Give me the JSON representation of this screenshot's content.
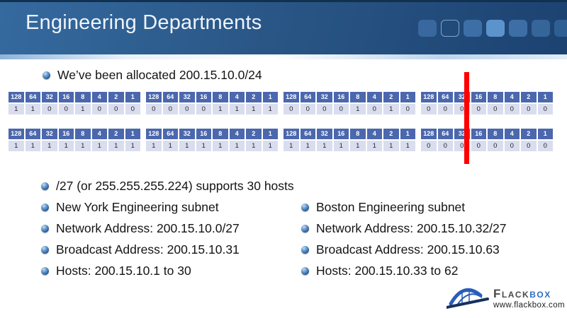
{
  "title": "Engineering Departments",
  "bullets": {
    "allocated": "We’ve been allocated 200.15.10.0/24",
    "supports": "/27 (or 255.255.255.224) supports 30 hosts"
  },
  "binary_tables": {
    "bit_headers": [
      "128",
      "64",
      "32",
      "16",
      "8",
      "4",
      "2",
      "1"
    ],
    "rows": [
      {
        "octets": [
          [
            "1",
            "1",
            "0",
            "0",
            "1",
            "0",
            "0",
            "0"
          ],
          [
            "0",
            "0",
            "0",
            "0",
            "1",
            "1",
            "1",
            "1"
          ],
          [
            "0",
            "0",
            "0",
            "0",
            "1",
            "0",
            "1",
            "0"
          ],
          [
            "0",
            "0",
            "0",
            "0",
            "0",
            "0",
            "0",
            "0"
          ]
        ]
      },
      {
        "octets": [
          [
            "1",
            "1",
            "1",
            "1",
            "1",
            "1",
            "1",
            "1"
          ],
          [
            "1",
            "1",
            "1",
            "1",
            "1",
            "1",
            "1",
            "1"
          ],
          [
            "1",
            "1",
            "1",
            "1",
            "1",
            "1",
            "1",
            "1"
          ],
          [
            "0",
            "0",
            "0",
            "0",
            "0",
            "0",
            "0",
            "0"
          ]
        ]
      }
    ]
  },
  "left_column": {
    "items": [
      "New York Engineering subnet",
      "Network Address: 200.15.10.0/27",
      "Broadcast Address: 200.15.10.31",
      "Hosts: 200.15.10.1 to 30"
    ]
  },
  "right_column": {
    "items": [
      "Boston Engineering subnet",
      "Network Address: 200.15.10.32/27",
      "Broadcast Address: 200.15.10.63",
      "Hosts: 200.15.10.33 to 62"
    ]
  },
  "logo": {
    "brand_first": "Flack",
    "brand_second": "box",
    "website": "www.flackbox.com"
  },
  "colors": {
    "header_blue": "#27517f",
    "table_header_blue": "#4b67ad",
    "table_cell_lavender": "#d9ddee",
    "red_line": "#fe0000",
    "brand_blue": "#2e6bc6"
  }
}
